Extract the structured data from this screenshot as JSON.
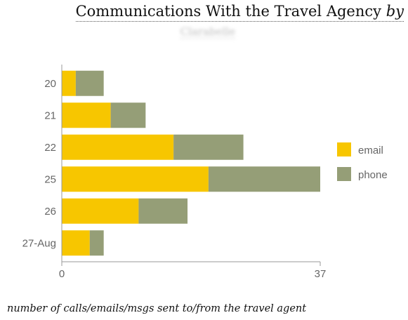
{
  "title": {
    "main": "Communications With the Travel Agency ",
    "by": "by",
    "author": "Clarabelle"
  },
  "footer": "number of calls/emails/msgs sent to/from the travel agent",
  "colors": {
    "email": "#f7c600",
    "phone": "#959e77",
    "axis": "#999999"
  },
  "chart_data": {
    "type": "bar",
    "orientation": "horizontal",
    "stacked": true,
    "categories": [
      "20",
      "21",
      "22",
      "25",
      "26",
      "27-Aug"
    ],
    "series": [
      {
        "name": "email",
        "values": [
          2,
          7,
          16,
          21,
          11,
          4
        ]
      },
      {
        "name": "phone",
        "values": [
          4,
          5,
          10,
          16,
          7,
          2
        ]
      }
    ],
    "xlim": [
      0,
      37
    ],
    "xticks": [
      "0",
      "37"
    ],
    "legend": "right",
    "grid": false
  }
}
